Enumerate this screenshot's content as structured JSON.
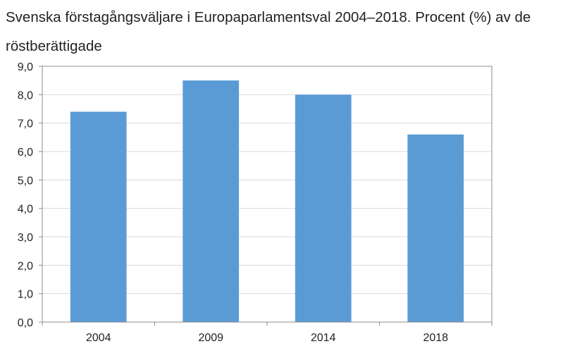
{
  "chart_data": {
    "type": "bar",
    "title": "Svenska förstagångsväljare i Europaparlamentsval 2004–2018. Procent (%) av de röstberättigade",
    "categories": [
      "2004",
      "2009",
      "2014",
      "2018"
    ],
    "values": [
      7.4,
      8.5,
      8.0,
      6.6
    ],
    "y_ticks": [
      "0,0",
      "1,0",
      "2,0",
      "3,0",
      "4,0",
      "5,0",
      "6,0",
      "7,0",
      "8,0",
      "9,0"
    ],
    "ylim": [
      0,
      9
    ],
    "grid": true,
    "bar_color": "#5b9bd5",
    "grid_color": "#d9d9d9",
    "axis_color": "#8c8c8c"
  }
}
